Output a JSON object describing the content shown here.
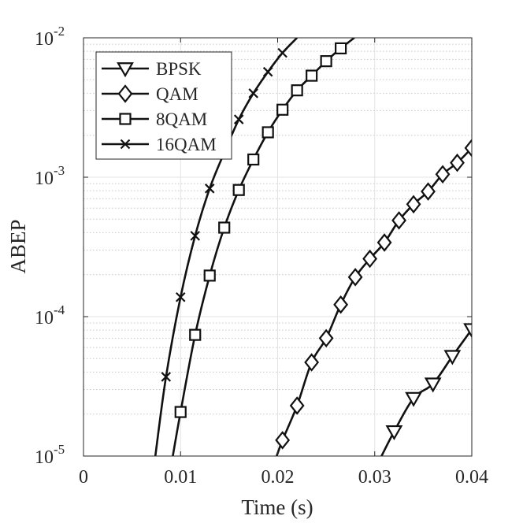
{
  "chart_data": {
    "type": "line",
    "xlabel": "Time (s)",
    "ylabel": "ABEP",
    "xlim": [
      0,
      0.04
    ],
    "ylim": [
      1e-05,
      0.01
    ],
    "yscale": "log",
    "grid": true,
    "minor_grid": true,
    "legend_position": "top-left",
    "x_ticks": [
      0,
      0.01,
      0.02,
      0.03,
      0.04
    ],
    "x_tick_labels": [
      "0",
      "0.01",
      "0.02",
      "0.03",
      "0.04"
    ],
    "y_ticks": [
      1e-05,
      0.0001,
      0.001,
      0.01
    ],
    "y_tick_bases": [
      "10",
      "10",
      "10",
      "10"
    ],
    "y_tick_exponents": [
      "-5",
      "-4",
      "-3",
      "-2"
    ],
    "series": [
      {
        "name": "BPSK",
        "marker": "triangle-down",
        "x": [
          0.0307,
          0.032,
          0.034,
          0.036,
          0.038,
          0.04
        ],
        "y": [
          1e-05,
          1.5e-05,
          2.6e-05,
          3.3e-05,
          5.2e-05,
          8.1e-05
        ]
      },
      {
        "name": "QAM",
        "marker": "diamond",
        "x": [
          0.0199,
          0.0205,
          0.022,
          0.0235,
          0.025,
          0.0265,
          0.028,
          0.0295,
          0.031,
          0.0325,
          0.034,
          0.0355,
          0.037,
          0.0385,
          0.04
        ],
        "y": [
          1e-05,
          1.3e-05,
          2.3e-05,
          4.7e-05,
          7e-05,
          0.000122,
          0.000192,
          0.00026,
          0.00034,
          0.00049,
          0.00064,
          0.00079,
          0.00105,
          0.00127,
          0.00162
        ]
      },
      {
        "name": "8QAM",
        "marker": "square",
        "x": [
          0.0092,
          0.01,
          0.0115,
          0.013,
          0.0145,
          0.016,
          0.0175,
          0.019,
          0.0205,
          0.022,
          0.0235,
          0.025,
          0.0265,
          0.0279
        ],
        "y": [
          1e-05,
          2.07e-05,
          7.4e-05,
          0.000197,
          0.000435,
          0.00081,
          0.00134,
          0.0021,
          0.00305,
          0.0042,
          0.00535,
          0.0068,
          0.0084,
          0.01
        ]
      },
      {
        "name": "16QAM",
        "marker": "x",
        "x": [
          0.0074,
          0.0085,
          0.01,
          0.0115,
          0.013,
          0.0145,
          0.016,
          0.0175,
          0.019,
          0.0205,
          0.022
        ],
        "y": [
          1e-05,
          3.7e-05,
          0.000138,
          0.00038,
          0.00083,
          0.0015,
          0.0026,
          0.004,
          0.0057,
          0.0078,
          0.01
        ]
      }
    ]
  }
}
